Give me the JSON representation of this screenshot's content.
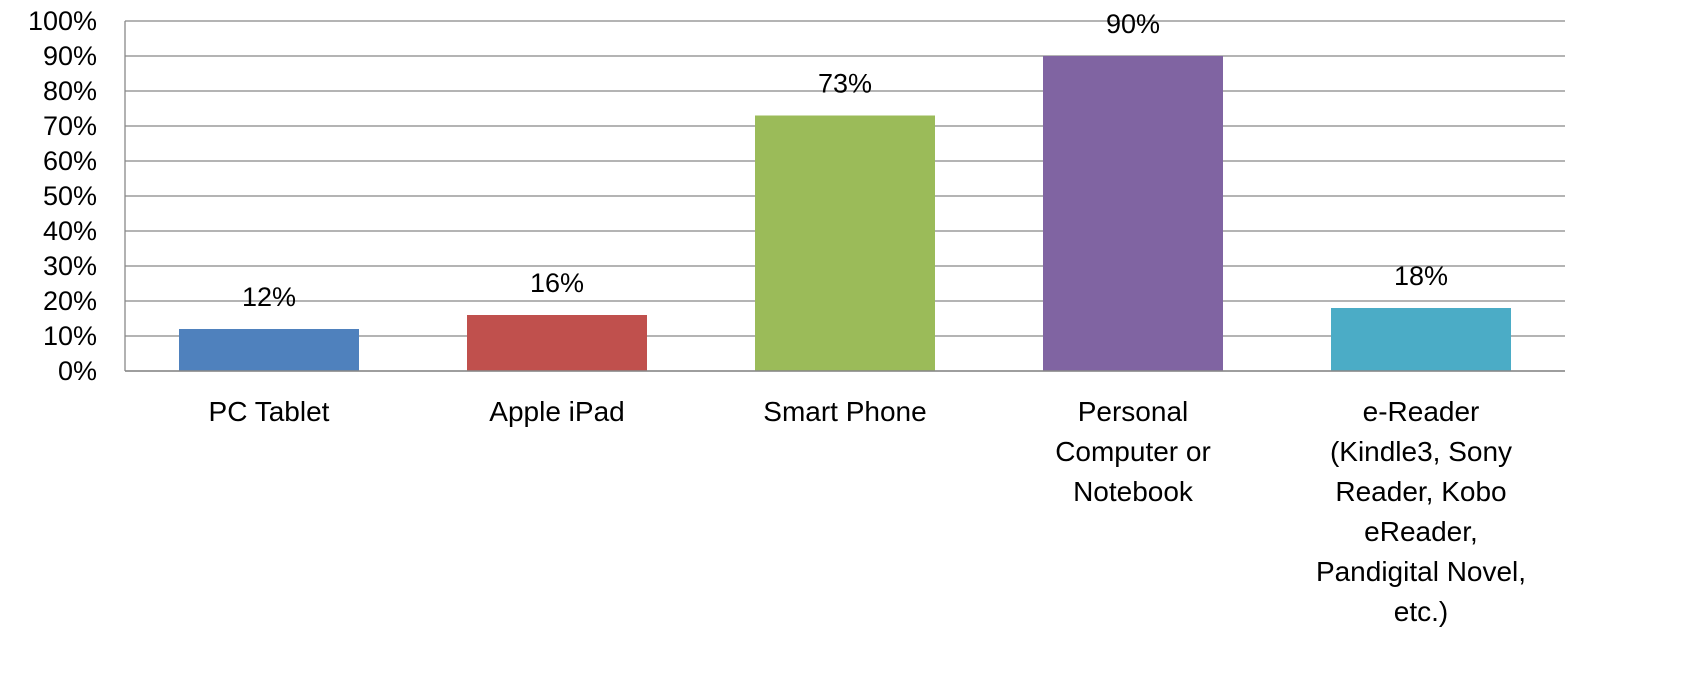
{
  "chart_data": {
    "type": "bar",
    "categories": [
      "PC Tablet",
      "Apple iPad",
      "Smart Phone",
      "Personal\nComputer or\nNotebook",
      "e-Reader\n(Kindle3, Sony\nReader, Kobo\neReader,\nPandigital Novel,\netc.)"
    ],
    "values": [
      12,
      16,
      73,
      90,
      18
    ],
    "value_labels": [
      "12%",
      "16%",
      "73%",
      "90%",
      "18%"
    ],
    "colors": [
      "#4f81bd",
      "#c0504d",
      "#9bbb59",
      "#8064a2",
      "#4bacc6"
    ],
    "ylim": [
      0,
      100
    ],
    "yticks": [
      {
        "value": 0,
        "label": "0%"
      },
      {
        "value": 10,
        "label": "10%"
      },
      {
        "value": 20,
        "label": "20%"
      },
      {
        "value": 30,
        "label": "30%"
      },
      {
        "value": 40,
        "label": "40%"
      },
      {
        "value": 50,
        "label": "50%"
      },
      {
        "value": 60,
        "label": "60%"
      },
      {
        "value": 70,
        "label": "70%"
      },
      {
        "value": 80,
        "label": "80%"
      },
      {
        "value": 90,
        "label": "90%"
      },
      {
        "value": 100,
        "label": "100%"
      }
    ],
    "grid": true
  }
}
